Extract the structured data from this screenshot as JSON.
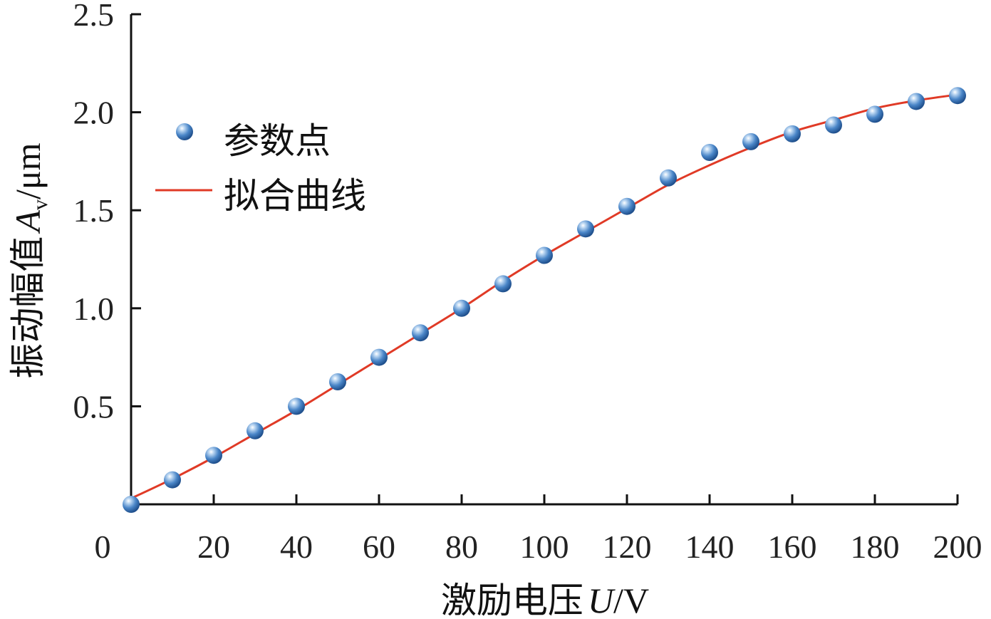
{
  "chart_data": {
    "type": "scatter",
    "xlabel": {
      "prefix": "激励电压",
      "symbol": "U",
      "unit": "/V"
    },
    "ylabel": {
      "prefix": "振动幅值",
      "symbol": "A",
      "subscript": "v",
      "unit": "/μm"
    },
    "xlim": [
      0,
      200
    ],
    "ylim": [
      0,
      2.5
    ],
    "x_ticks": [
      "0",
      "20",
      "40",
      "60",
      "80",
      "100",
      "120",
      "140",
      "160",
      "180",
      "200"
    ],
    "y_ticks": [
      "0.5",
      "1.0",
      "1.5",
      "2.0",
      "2.5"
    ],
    "legend_position": "upper-left",
    "grid": false,
    "series": [
      {
        "name": "参数点",
        "kind": "scatter",
        "color": "#4a86c8",
        "x": [
          0,
          10,
          20,
          30,
          40,
          50,
          60,
          70,
          80,
          90,
          100,
          110,
          120,
          130,
          140,
          150,
          160,
          170,
          180,
          190,
          200
        ],
        "y": [
          0.0,
          0.125,
          0.25,
          0.375,
          0.5,
          0.625,
          0.75,
          0.875,
          1.0,
          1.125,
          1.27,
          1.405,
          1.52,
          1.665,
          1.795,
          1.85,
          1.89,
          1.935,
          1.99,
          2.055,
          2.085
        ]
      },
      {
        "name": "拟合曲线",
        "kind": "line",
        "color": "#e03a26",
        "x": [
          0,
          10,
          20,
          30,
          40,
          50,
          60,
          70,
          80,
          90,
          100,
          110,
          120,
          130,
          140,
          150,
          160,
          170,
          180,
          190,
          200
        ],
        "y": [
          0.03,
          0.13,
          0.24,
          0.36,
          0.48,
          0.61,
          0.74,
          0.87,
          1.0,
          1.14,
          1.27,
          1.39,
          1.51,
          1.63,
          1.73,
          1.82,
          1.9,
          1.96,
          2.02,
          2.06,
          2.09
        ]
      }
    ]
  }
}
